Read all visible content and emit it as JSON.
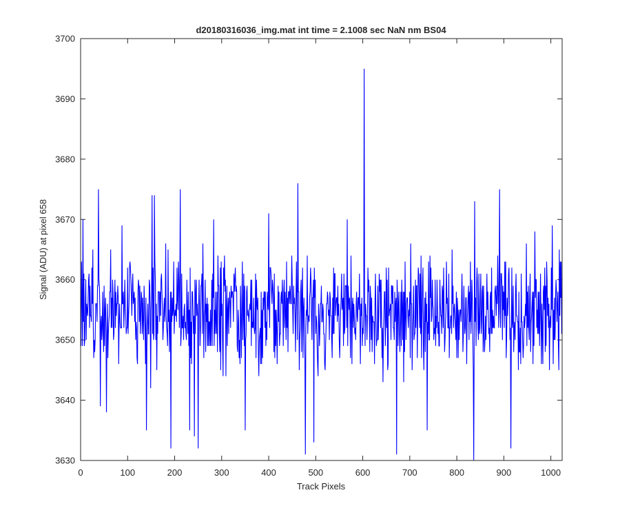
{
  "chart_data": {
    "type": "line",
    "title": "d20180316036_img.mat int time = 2.1008 sec  NaN nm BS04",
    "xlabel": "Track Pixels",
    "ylabel": "Signal (ADU) at pixel 658",
    "xlim": [
      0,
      1024
    ],
    "ylim": [
      3630,
      3700
    ],
    "xticks": [
      0,
      100,
      200,
      300,
      400,
      500,
      600,
      700,
      800,
      900,
      1000
    ],
    "yticks": [
      3630,
      3640,
      3650,
      3660,
      3670,
      3680,
      3690,
      3700
    ],
    "grid": false,
    "legend": "none",
    "line_color": "#0000ff",
    "series": [
      {
        "x_start": 0,
        "x_step": 1,
        "samples": 1024,
        "noise_center": 3655,
        "noise_typical_range": [
          3641,
          3668
        ],
        "noise_seed": 20180316,
        "extremes": [
          {
            "x": 5,
            "y": 3670
          },
          {
            "x": 38,
            "y": 3675
          },
          {
            "x": 42,
            "y": 3639
          },
          {
            "x": 55,
            "y": 3638
          },
          {
            "x": 88,
            "y": 3669
          },
          {
            "x": 140,
            "y": 3635
          },
          {
            "x": 152,
            "y": 3674
          },
          {
            "x": 157,
            "y": 3674
          },
          {
            "x": 192,
            "y": 3632
          },
          {
            "x": 212,
            "y": 3675
          },
          {
            "x": 232,
            "y": 3635
          },
          {
            "x": 242,
            "y": 3634
          },
          {
            "x": 250,
            "y": 3632
          },
          {
            "x": 283,
            "y": 3670
          },
          {
            "x": 350,
            "y": 3635
          },
          {
            "x": 400,
            "y": 3671
          },
          {
            "x": 462,
            "y": 3676
          },
          {
            "x": 478,
            "y": 3631
          },
          {
            "x": 496,
            "y": 3633
          },
          {
            "x": 567,
            "y": 3670
          },
          {
            "x": 603,
            "y": 3695
          },
          {
            "x": 672,
            "y": 3631
          },
          {
            "x": 737,
            "y": 3635
          },
          {
            "x": 836,
            "y": 3630
          },
          {
            "x": 838,
            "y": 3673
          },
          {
            "x": 891,
            "y": 3675
          },
          {
            "x": 915,
            "y": 3632
          },
          {
            "x": 966,
            "y": 3668
          },
          {
            "x": 1003,
            "y": 3669
          }
        ]
      }
    ]
  }
}
